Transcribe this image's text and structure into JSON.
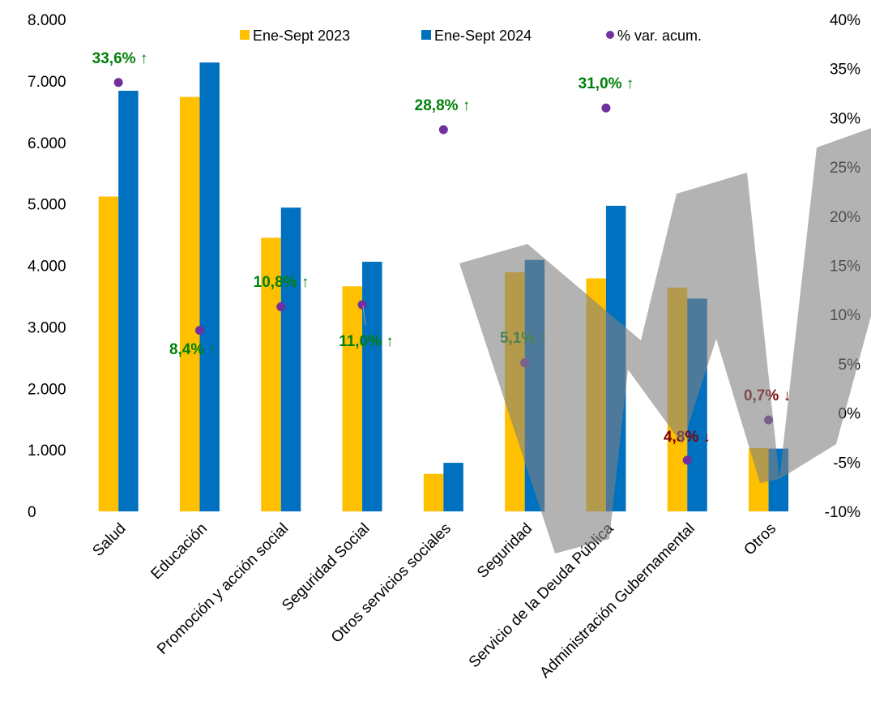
{
  "chart_data": {
    "type": "bar",
    "categories": [
      "Salud",
      "Educación",
      "Promoción y acción social",
      "Seguridad Social",
      "Otros servicios sociales",
      "Seguridad",
      "Servicio de la Deuda Pública",
      "Administración Gubernamental",
      "Otros"
    ],
    "series": [
      {
        "name": "Ene-Sept 2023",
        "type": "bar",
        "axis": "left",
        "color": "#FFC000",
        "values": [
          5120,
          6740,
          4450,
          3660,
          610,
          3890,
          3790,
          3640,
          1030
        ]
      },
      {
        "name": "Ene-Sept 2024",
        "type": "bar",
        "axis": "left",
        "color": "#0070C0",
        "values": [
          6840,
          7300,
          4940,
          4060,
          790,
          4090,
          4970,
          3460,
          1020
        ]
      },
      {
        "name": "% var. acum.",
        "type": "scatter",
        "axis": "right",
        "color": "#7030A0",
        "values": [
          33.6,
          8.4,
          10.8,
          11.0,
          28.8,
          5.1,
          31.0,
          -4.8,
          -0.7
        ]
      }
    ],
    "point_labels": [
      "33,6% ↑",
      "8,4% ↑",
      "10,8% ↑",
      "11,0% ↑",
      "28,8% ↑",
      "5,1% ↑",
      "31,0% ↑",
      "4,8% ↓",
      "0,7% ↓"
    ],
    "point_label_colors": [
      "#00800A",
      "#00800A",
      "#00800A",
      "#00800A",
      "#00800A",
      "#00800A",
      "#00800A",
      "#7B0000",
      "#7B0000"
    ],
    "y_left": {
      "ticks": [
        "8.000",
        "7.000",
        "6.000",
        "5.000",
        "4.000",
        "3.000",
        "2.000",
        "1.000",
        "0"
      ],
      "range": [
        0,
        8000
      ]
    },
    "y_right": {
      "ticks": [
        "40%",
        "35%",
        "30%",
        "25%",
        "20%",
        "15%",
        "10%",
        "5%",
        "0%",
        "-5%",
        "-10%"
      ],
      "range": [
        -10,
        40
      ]
    },
    "legend": {
      "position": "top",
      "items": [
        "Ene-Sept 2023",
        "Ene-Sept 2024",
        "% var. acum."
      ]
    },
    "grid": false,
    "watermark_color": "#808080"
  }
}
